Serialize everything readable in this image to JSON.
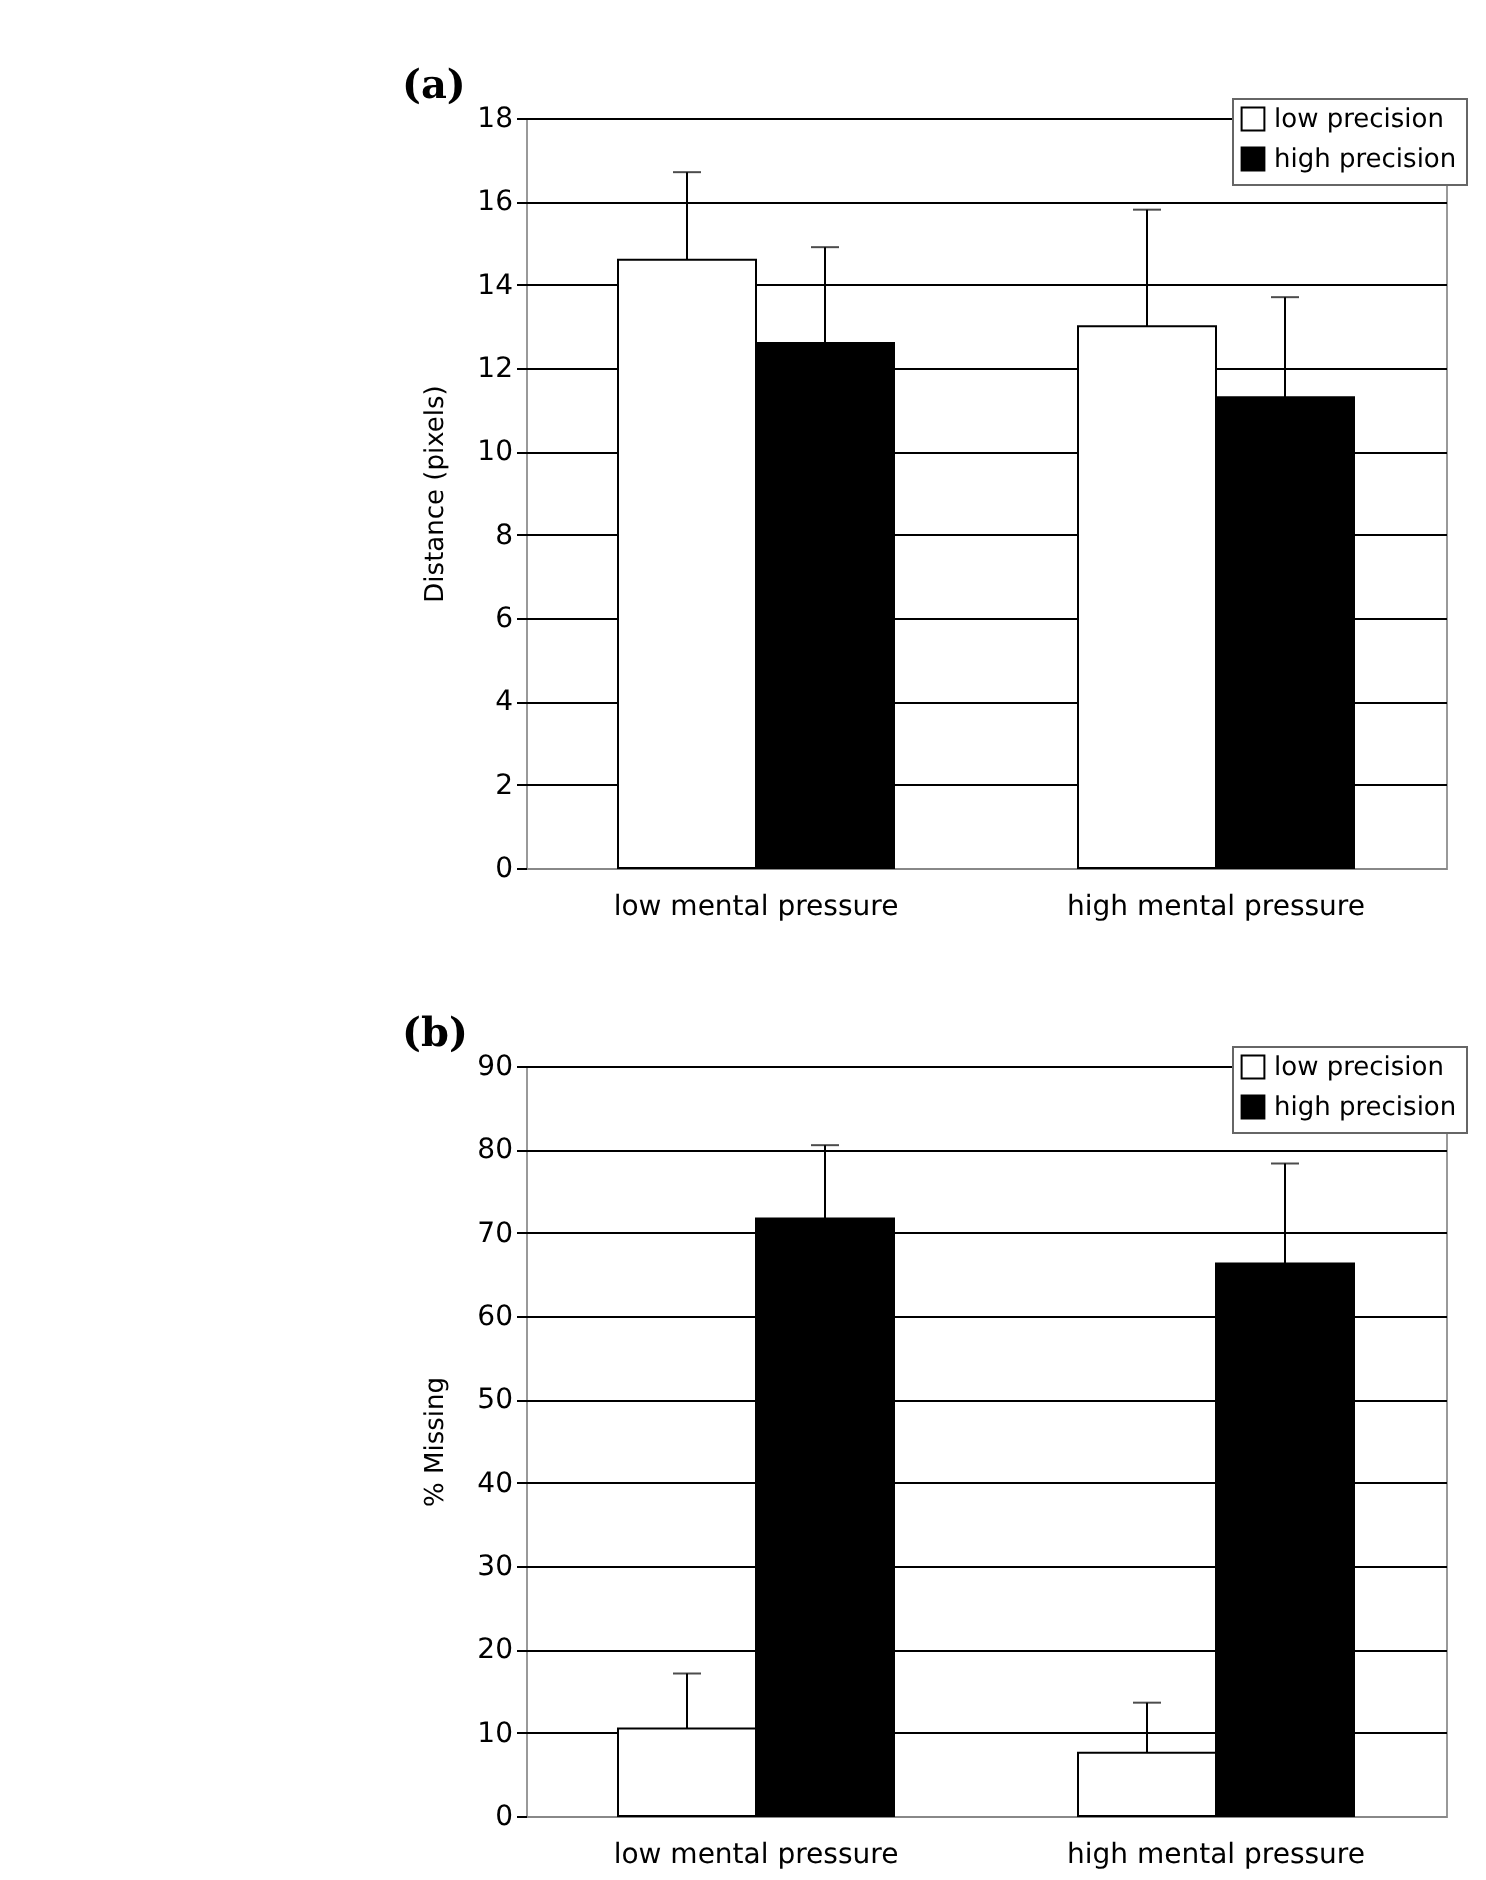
{
  "chart_data": [
    {
      "type": "bar",
      "title": "(a)",
      "categories": [
        "low mental pressure",
        "high mental pressure"
      ],
      "ylabel": "Distance (pixels)",
      "ylim": [
        0,
        18
      ],
      "yticks": [
        0,
        2,
        4,
        6,
        8,
        10,
        12,
        14,
        16,
        18
      ],
      "grid": "y",
      "legend": "top right",
      "series": [
        {
          "name": "low precision",
          "color": "#ffffff",
          "values": [
            14.6,
            13.0
          ],
          "errors": [
            [
              14.6,
              16.7
            ],
            [
              13.0,
              15.8
            ]
          ]
        },
        {
          "name": "high precision",
          "color": "#000000",
          "values": [
            12.6,
            11.3
          ],
          "errors": [
            [
              12.6,
              14.9
            ],
            [
              11.3,
              13.7
            ]
          ]
        }
      ]
    },
    {
      "type": "bar",
      "title": "(b)",
      "categories": [
        "low mental pressure",
        "high mental pressure"
      ],
      "ylabel": "% Missing",
      "ylim": [
        0,
        90
      ],
      "yticks": [
        0,
        10,
        20,
        30,
        40,
        50,
        60,
        70,
        80,
        90
      ],
      "grid": "y",
      "legend": "top right",
      "series": [
        {
          "name": "low precision",
          "color": "#ffffff",
          "values": [
            10.5,
            7.6
          ],
          "errors": [
            [
              10.5,
              17.1
            ],
            [
              7.6,
              13.6
            ]
          ]
        },
        {
          "name": "high precision",
          "color": "#000000",
          "values": [
            71.7,
            66.3
          ],
          "errors": [
            [
              71.7,
              80.5
            ],
            [
              66.3,
              78.3
            ]
          ]
        }
      ]
    }
  ]
}
